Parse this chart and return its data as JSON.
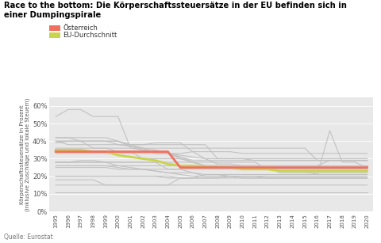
{
  "title_line1": "Race to the bottom: Die Körperschaftssteuersätze in der EU befinden sich in",
  "title_line2": "einer Dumpingspirale",
  "ylabel": "Körperschaftssteuersätze in Prozent\n(inklusive Zuschläge und lokale Steuern)",
  "source": "Quelle: Eurostat",
  "legend_austria": "Österreich",
  "legend_eu": "EU-Durchschnitt",
  "years": [
    1995,
    1996,
    1997,
    1998,
    1999,
    2000,
    2001,
    2002,
    2003,
    2004,
    2005,
    2006,
    2007,
    2008,
    2009,
    2010,
    2011,
    2012,
    2013,
    2014,
    2015,
    2016,
    2017,
    2018,
    2019,
    2020
  ],
  "austria": [
    34,
    34,
    34,
    34,
    34,
    34,
    34,
    34,
    34,
    34,
    25,
    25,
    25,
    25,
    25,
    25,
    25,
    25,
    25,
    25,
    25,
    25,
    25,
    25,
    25,
    25
  ],
  "eu_avg": [
    35,
    35,
    35,
    34,
    34,
    32,
    31,
    30,
    29,
    27,
    26,
    26,
    25.5,
    25,
    25,
    24,
    24,
    24,
    23,
    23,
    23,
    23,
    23,
    23,
    23,
    23
  ],
  "eu_countries": [
    [
      42,
      42,
      42,
      42,
      42,
      40,
      38,
      38,
      38,
      38,
      38,
      38,
      38,
      30,
      30,
      30,
      30,
      30,
      30,
      30,
      30,
      30,
      30,
      30,
      30,
      30
    ],
    [
      40,
      40,
      40,
      40,
      40,
      40,
      37,
      35,
      33,
      33,
      31,
      29,
      29,
      29,
      29,
      29,
      29,
      29,
      29,
      29,
      29,
      29,
      29,
      29,
      29,
      29
    ],
    [
      40,
      40,
      40,
      36,
      36,
      36,
      36,
      35,
      34,
      33,
      30,
      28,
      26,
      26,
      26,
      26,
      26,
      26,
      26,
      26,
      26,
      26,
      29,
      29,
      29,
      29
    ],
    [
      42,
      42,
      40,
      40,
      40,
      38,
      37,
      36,
      33,
      33,
      32,
      31,
      30,
      30,
      30,
      30,
      29,
      29,
      29,
      29,
      29,
      29,
      29,
      29,
      29,
      29
    ],
    [
      36,
      36,
      36,
      36,
      36,
      34,
      34,
      30,
      30,
      30,
      30,
      28,
      26,
      26,
      25,
      25,
      25,
      25,
      25,
      25,
      25,
      25,
      25,
      25,
      25,
      25
    ],
    [
      39,
      40,
      40,
      40,
      40,
      40,
      38,
      36,
      35,
      33,
      33,
      34,
      34,
      34,
      34,
      33,
      33,
      33,
      33,
      33,
      33,
      33,
      33,
      33,
      33,
      33
    ],
    [
      33,
      33,
      33,
      33,
      33,
      33,
      33,
      33,
      33,
      33,
      31,
      28,
      26,
      26,
      25,
      25,
      25,
      25,
      22,
      22,
      22,
      22,
      22,
      22,
      22,
      22
    ],
    [
      26,
      26,
      26,
      26,
      26,
      25,
      24,
      24,
      23,
      22,
      21,
      20,
      20,
      20,
      20,
      20,
      20,
      20,
      20,
      20,
      20,
      20,
      20,
      20,
      20,
      20
    ],
    [
      26,
      26,
      26,
      26,
      26,
      26,
      26,
      26,
      26,
      26,
      26,
      26,
      26,
      26,
      26,
      26,
      26,
      26,
      26,
      26,
      26,
      26,
      26,
      26,
      26,
      26
    ],
    [
      25,
      25,
      25,
      25,
      25,
      24,
      24,
      24,
      24,
      24,
      24,
      24,
      24,
      24,
      24,
      24,
      24,
      24,
      24,
      24,
      24,
      24,
      24,
      24,
      24,
      24
    ],
    [
      28,
      28,
      28,
      28,
      28,
      28,
      28,
      28,
      28,
      24,
      24,
      22,
      20,
      20,
      20,
      19,
      19,
      19,
      19,
      19,
      19,
      19,
      19,
      19,
      19,
      19
    ],
    [
      20,
      20,
      20,
      20,
      20,
      20,
      20,
      20,
      20,
      19,
      19,
      19,
      19,
      19,
      19,
      19,
      19,
      19,
      19,
      19,
      19,
      19,
      19,
      19,
      19,
      19
    ],
    [
      18,
      18,
      18,
      18,
      15,
      15,
      15,
      15,
      15,
      15,
      15,
      15,
      15,
      15,
      15,
      15,
      15,
      15,
      15,
      15,
      15,
      15,
      15,
      15,
      15,
      15
    ],
    [
      28,
      28,
      29,
      29,
      28,
      26,
      25,
      24,
      23,
      22,
      22,
      22,
      21,
      21,
      20,
      20,
      20,
      19,
      19,
      19,
      19,
      19,
      19,
      19,
      19,
      19
    ],
    [
      54,
      58,
      58,
      54,
      54,
      54,
      36,
      36,
      36,
      36,
      36,
      36,
      36,
      36,
      36,
      36,
      36,
      36,
      36,
      36,
      36,
      29,
      29,
      29,
      29,
      29
    ],
    [
      28,
      28,
      28,
      28,
      28,
      28,
      28,
      28,
      28,
      28,
      28,
      28,
      28,
      28,
      28,
      28,
      28,
      24,
      24,
      24,
      24,
      24,
      24,
      24,
      24,
      24
    ],
    [
      40,
      38,
      38,
      38,
      38,
      38,
      38,
      38,
      39,
      39,
      39,
      34,
      30,
      27,
      27,
      26,
      26,
      24,
      23,
      23,
      23,
      21,
      46,
      28,
      28,
      25
    ],
    [
      20,
      20,
      20,
      20,
      20,
      20,
      20,
      20,
      20,
      20,
      19,
      19,
      19,
      19,
      20,
      20,
      20,
      20,
      20,
      20,
      20,
      20,
      20,
      20,
      20,
      20
    ],
    [
      15,
      15,
      15,
      15,
      15,
      15,
      15,
      15,
      15,
      15,
      19,
      19,
      21,
      21,
      21,
      21,
      21,
      21,
      21,
      21,
      21,
      21,
      21,
      21,
      21,
      21
    ],
    [
      11,
      11,
      11,
      11,
      11,
      11,
      11,
      11,
      11,
      11,
      11,
      11,
      11,
      11,
      11,
      11,
      11,
      11,
      11,
      11,
      11,
      11,
      11,
      11,
      11,
      11
    ]
  ],
  "plot_bg": "#e8e8e8",
  "austria_color": "#f07060",
  "eu_color": "#c8d44a",
  "country_color": "#c0c0c0",
  "ylim": [
    0,
    65
  ],
  "yticks": [
    0,
    10,
    20,
    30,
    40,
    50,
    60
  ],
  "ytick_labels": [
    "0%",
    "10%",
    "20%",
    "30%",
    "40%",
    "50%",
    "60%"
  ]
}
